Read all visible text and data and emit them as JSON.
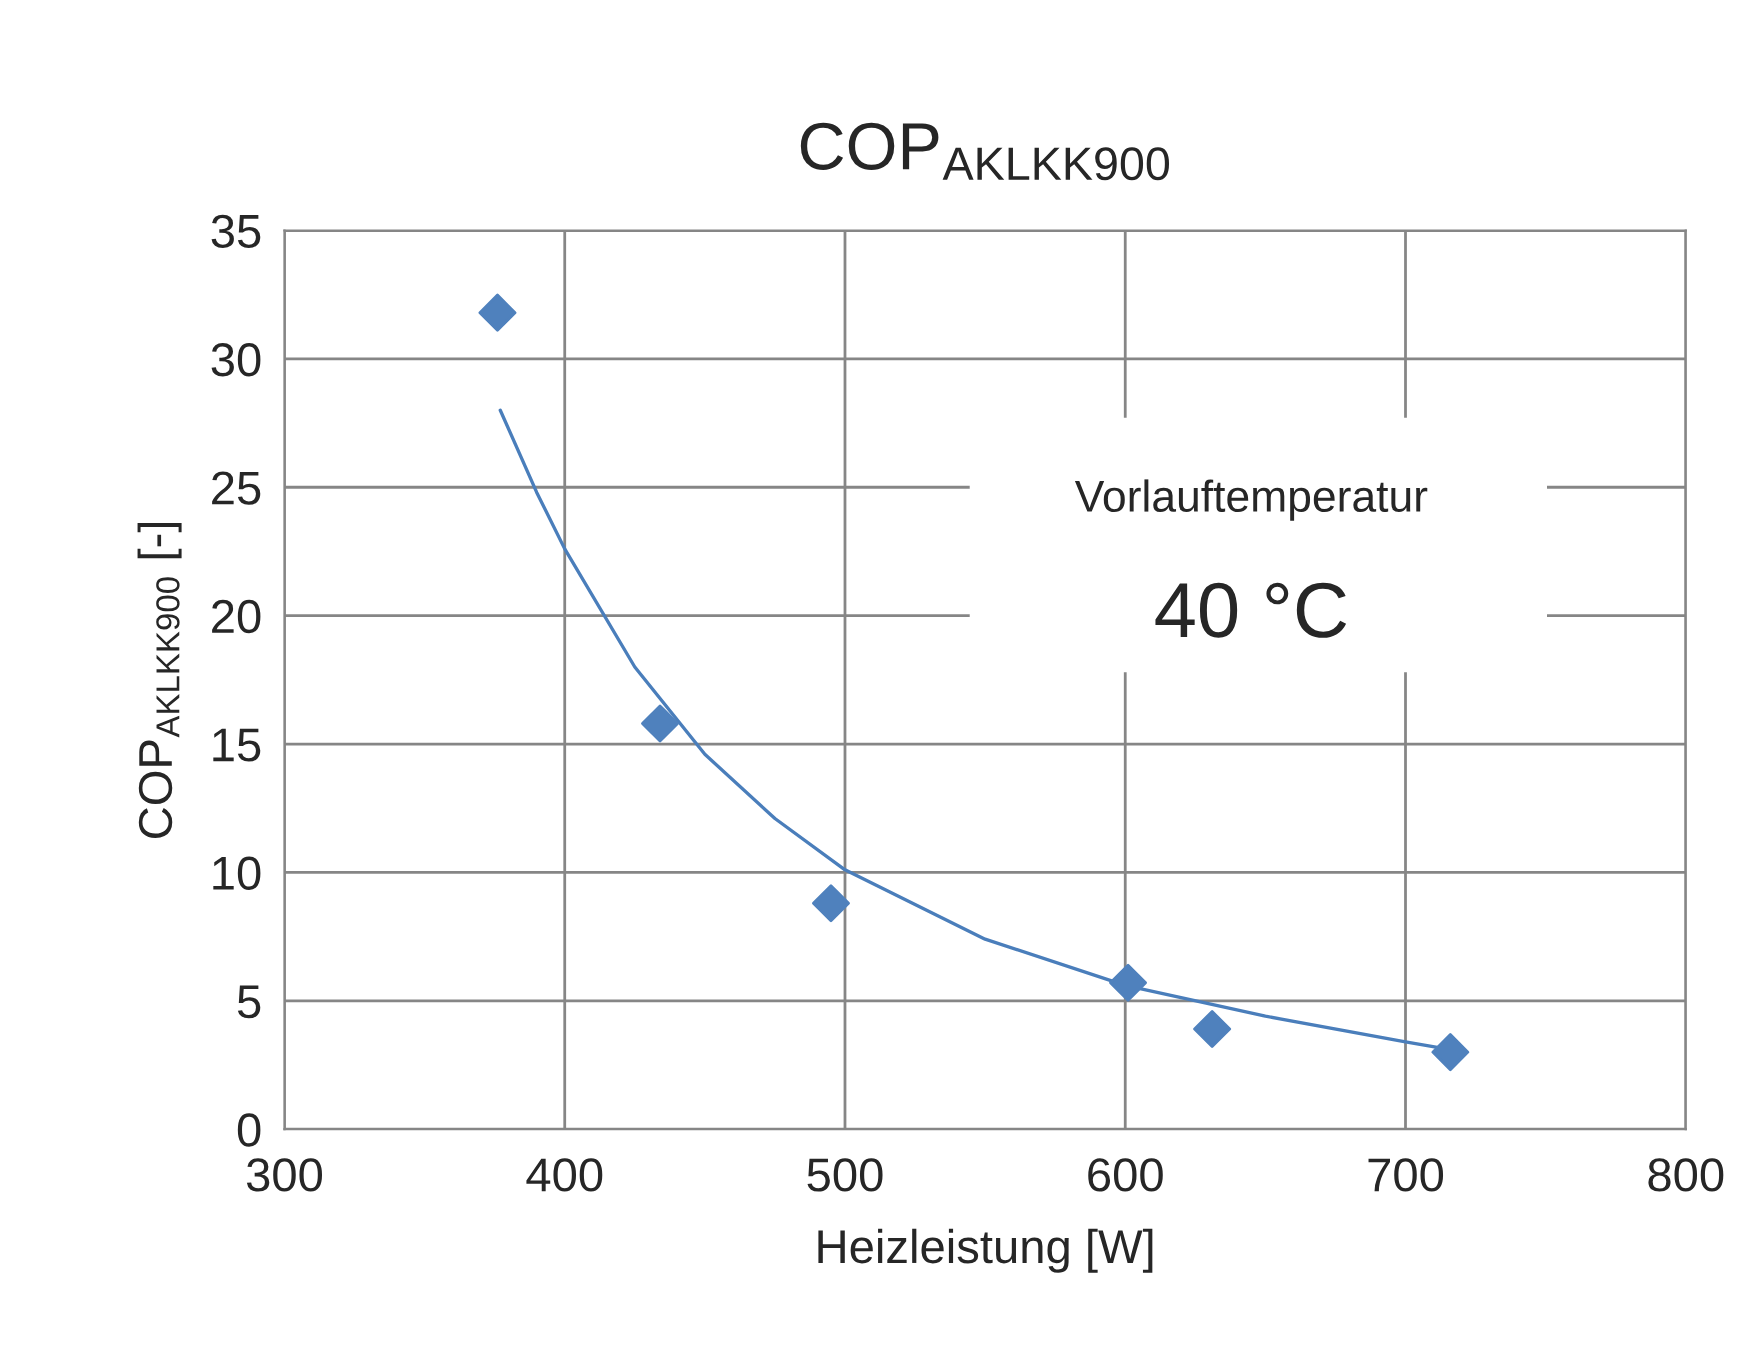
{
  "chart_data": {
    "type": "scatter",
    "title": "COP$_{AKLKK900}$",
    "xlabel": "Heizleistung [W]",
    "ylabel": "COP$_{AKLKK900}$ [-]",
    "series": [
      {
        "color": "#4f81bd",
        "marker": "diamond",
        "x": [
          376,
          434,
          495,
          601,
          631,
          716
        ],
        "values": [
          31.8,
          15.8,
          8.8,
          5.7,
          3.9,
          3.0
        ]
      },
      {
        "type": "line",
        "color": "#4a7ebb",
        "marker": "none",
        "x": [
          377,
          390,
          400,
          425,
          450,
          475,
          500,
          550,
          600,
          650,
          700,
          716
        ],
        "values": [
          28.0,
          24.8,
          22.6,
          18.0,
          14.6,
          12.1,
          10.1,
          7.4,
          5.6,
          4.4,
          3.4,
          3.1
        ]
      }
    ],
    "xlim": [
      300,
      800
    ],
    "xticks": [
      300,
      400,
      500,
      600,
      700,
      800
    ],
    "ylim": [
      0,
      35
    ],
    "yticks": [
      0,
      5,
      10,
      15,
      20,
      25,
      30,
      35
    ],
    "grid": true,
    "legend": false,
    "annotations": [
      "Vorlauftemperatur",
      "40 °C"
    ]
  }
}
